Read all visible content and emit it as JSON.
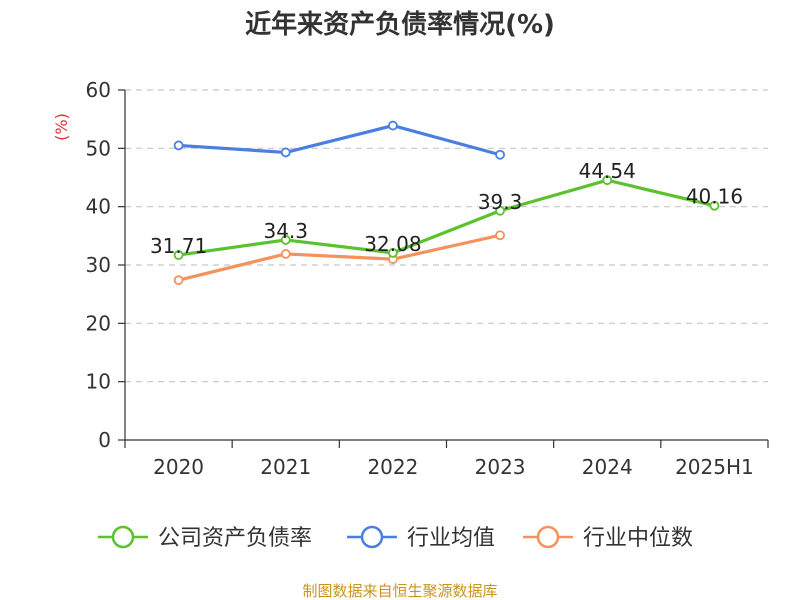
{
  "source_text": "制图数据来自恒生聚源数据库",
  "chart_data": {
    "type": "line",
    "title": "近年来资产负债率情况(%)",
    "ylabel": "(%)",
    "xlabel": "",
    "categories": [
      "2020",
      "2021",
      "2022",
      "2023",
      "2024",
      "2025H1"
    ],
    "ylim": [
      0,
      60
    ],
    "yticks": [
      0,
      10,
      20,
      30,
      40,
      50,
      60
    ],
    "grid": true,
    "legend_position": "bottom",
    "series": [
      {
        "name": "公司资产负债率",
        "color": "#5cc12e",
        "values": [
          31.71,
          34.3,
          32.08,
          39.3,
          44.54,
          40.16
        ],
        "labels": [
          "31.71",
          "34.3",
          "32.08",
          "39.3",
          "44.54",
          "40.16"
        ]
      },
      {
        "name": "行业均值",
        "color": "#4a7fe0",
        "values": [
          50.5,
          49.3,
          53.9,
          48.9,
          null,
          null
        ]
      },
      {
        "name": "行业中位数",
        "color": "#f5915a",
        "values": [
          27.4,
          31.9,
          31.0,
          35.1,
          null,
          null
        ]
      }
    ]
  }
}
